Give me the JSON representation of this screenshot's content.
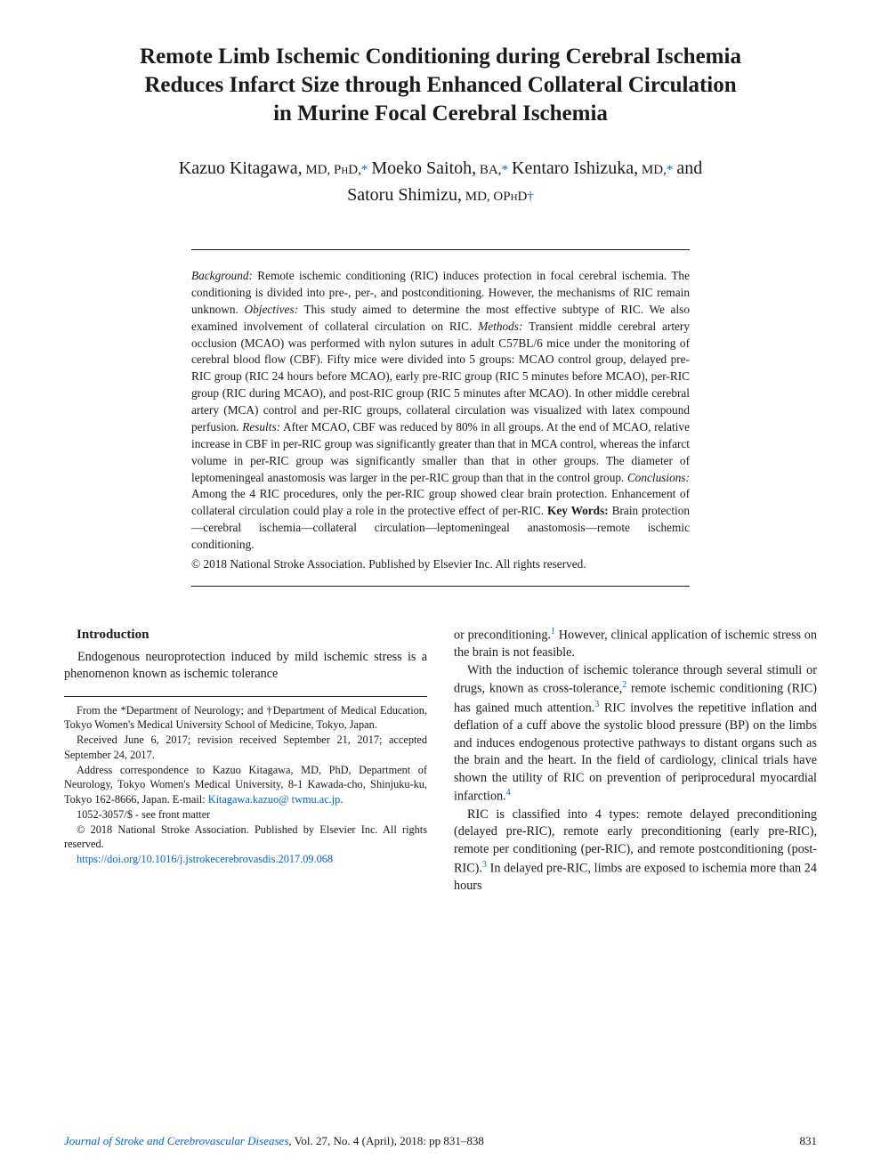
{
  "title_fontsize": 25,
  "title_lines": [
    "Remote Limb Ischemic Conditioning during Cerebral Ischemia",
    "Reduces Infarct Size through Enhanced Collateral Circulation",
    "in Murine Focal Cerebral Ischemia"
  ],
  "authors_line1_parts": [
    {
      "name": "Kazuo Kitagawa,",
      "deg": " MD, PhD,",
      "mark": "*"
    },
    {
      "name": " Moeko Saitoh,",
      "deg": " BA,",
      "mark": "*"
    },
    {
      "name": " Kentaro Ishizuka,",
      "deg": " MD,",
      "mark": "*"
    }
  ],
  "authors_line1_tail": " and",
  "authors_line2_parts": [
    {
      "name": "Satoru Shimizu,",
      "deg": " MD, OPhD",
      "mark": "†"
    }
  ],
  "abstract": {
    "background_label": "Background:",
    "background": " Remote ischemic conditioning (RIC) induces protection in focal cerebral ischemia. The conditioning is divided into pre-, per-, and postconditioning. However, the mechanisms of RIC remain unknown. ",
    "objectives_label": "Objectives:",
    "objectives": " This study aimed to determine the most effective subtype of RIC. We also examined involvement of collateral circulation on RIC. ",
    "methods_label": "Methods:",
    "methods": " Transient middle cerebral artery occlusion (MCAO) was performed with nylon sutures in adult C57BL/6 mice under the monitoring of cerebral blood flow (CBF). Fifty mice were divided into 5 groups: MCAO control group, delayed pre-RIC group (RIC 24 hours before MCAO), early pre-RIC group (RIC 5 minutes before MCAO), per-RIC group (RIC during MCAO), and post-RIC group (RIC 5 minutes after MCAO). In other middle cerebral artery (MCA) control and per-RIC groups, collateral circulation was visualized with latex compound perfusion. ",
    "results_label": "Results:",
    "results": " After MCAO, CBF was reduced by 80% in all groups. At the end of MCAO, relative increase in CBF in per-RIC group was significantly greater than that in MCA control, whereas the infarct volume in per-RIC group was significantly smaller than that in other groups. The diameter of leptomeningeal anastomosis was larger in the per-RIC group than that in the control group. ",
    "conclusions_label": "Conclusions:",
    "conclusions": " Among the 4 RIC procedures, only the per-RIC group showed clear brain protection. Enhancement of collateral circulation could play a role in the protective effect of per-RIC. ",
    "keywords_label": "Key Words:",
    "keywords": " Brain protection—cerebral ischemia—collateral circulation—leptomeningeal anastomosis—remote ischemic conditioning.",
    "copyright": "© 2018 National Stroke Association. Published by Elsevier Inc. All rights reserved."
  },
  "intro_heading": "Introduction",
  "intro_p1": "Endogenous neuroprotection induced by mild ischemic stress is a phenomenon known as ischemic tolerance",
  "right_p1a": "or preconditioning.",
  "right_p1b": " However, clinical application of ischemic stress on the brain is not feasible.",
  "right_p2a": "With the induction of ischemic tolerance through several stimuli or drugs, known as cross-tolerance,",
  "right_p2b": " remote ischemic conditioning (RIC) has gained much attention.",
  "right_p2c": " RIC involves the repetitive inflation and deflation of a cuff above the systolic blood pressure (BP) on the limbs and induces endogenous protective pathways to distant organs such as the brain and the heart. In the field of cardiology, clinical trials have shown the utility of RIC on prevention of periprocedural myocardial infarction.",
  "right_p3a": "RIC is classified into 4 types: remote delayed preconditioning (delayed pre-RIC), remote early preconditioning (early pre-RIC), remote per conditioning (per-RIC), and remote postconditioning (post-RIC).",
  "right_p3b": " In delayed pre-RIC, limbs are exposed to ischemia more than 24 hours",
  "ref1": "1",
  "ref2": "2",
  "ref3": "3",
  "ref4": "4",
  "footnotes": {
    "affil": "From the *Department of Neurology; and †Department of Medical Education, Tokyo Women's Medical University School of Medicine, Tokyo, Japan.",
    "dates": "Received June 6, 2017; revision received September 21, 2017; accepted September 24, 2017.",
    "corr_pre": "Address correspondence to Kazuo Kitagawa, MD, PhD, Department of Neurology, Tokyo Women's Medical University, 8-1 Kawada-cho, Shinjuku-ku, Tokyo 162-8666, Japan. E-mail: ",
    "email1": "Kitagawa.kazuo@",
    "email2": "twmu.ac.jp",
    "email_tail": ".",
    "issn": "1052-3057/$ - see front matter",
    "cpr": "© 2018 National Stroke Association. Published by Elsevier Inc. All rights reserved.",
    "doi": "https://doi.org/10.1016/j.jstrokecerebrovasdis.2017.09.068"
  },
  "footer": {
    "journal": "Journal of Stroke and Cerebrovascular Diseases",
    "issue": ", Vol. 27, No. 4 (April), 2018: pp 831–838",
    "page": "831"
  },
  "colors": {
    "text": "#1a1a1a",
    "link": "#0066cc",
    "background": "#ffffff"
  }
}
